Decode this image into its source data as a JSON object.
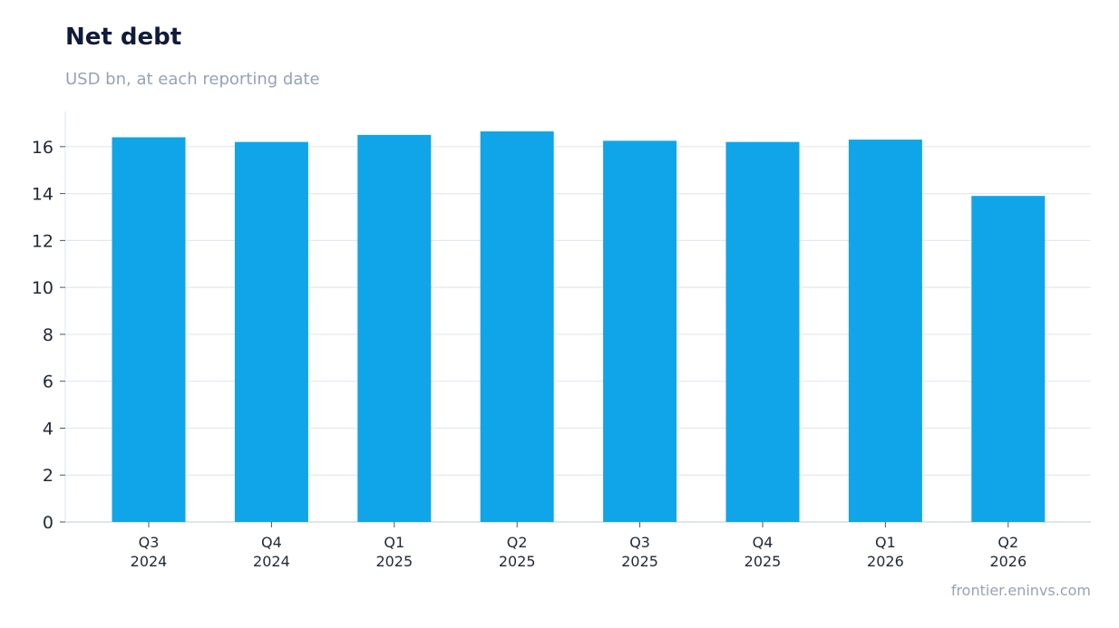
{
  "chart_data": {
    "type": "bar",
    "title": "Net debt",
    "subtitle": "USD bn, at each reporting date",
    "categories": [
      [
        "Q3",
        "2024"
      ],
      [
        "Q4",
        "2024"
      ],
      [
        "Q1",
        "2025"
      ],
      [
        "Q2",
        "2025"
      ],
      [
        "Q3",
        "2025"
      ],
      [
        "Q4",
        "2025"
      ],
      [
        "Q1",
        "2026"
      ],
      [
        "Q2",
        "2026"
      ]
    ],
    "values": [
      16.4,
      16.2,
      16.5,
      16.65,
      16.25,
      16.2,
      16.3,
      13.9
    ],
    "ylim": [
      0,
      17.5
    ],
    "yticks": [
      "0",
      "2",
      "4",
      "6",
      "8",
      "10",
      "12",
      "14",
      "16"
    ],
    "grid": true,
    "bar_color": "#10a5e8",
    "source": "frontier.eninvs.com"
  }
}
